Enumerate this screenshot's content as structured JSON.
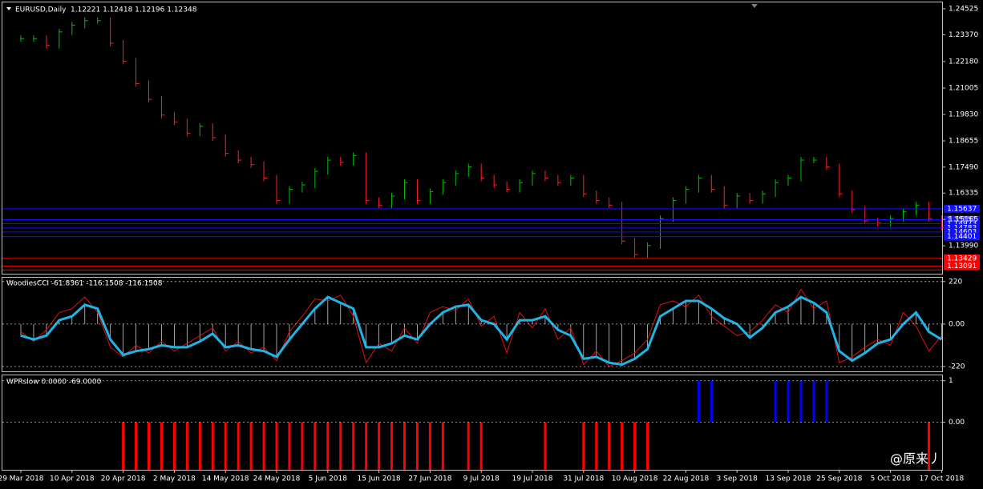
{
  "chart_data": [
    {
      "type": "price",
      "title": "EURUSD,Daily",
      "subtitle": "1.12221 1.12418 1.12196 1.12348",
      "categories": [
        "29 Mar 2018",
        null,
        null,
        null,
        "10 Apr 2018",
        null,
        null,
        null,
        "20 Apr 2018",
        null,
        null,
        null,
        "2 May 2018",
        null,
        null,
        null,
        "14 May 2018",
        null,
        null,
        null,
        "24 May 2018",
        null,
        null,
        null,
        "5 Jun 2018",
        null,
        null,
        null,
        "15 Jun 2018",
        null,
        null,
        null,
        "27 Jun 2018",
        null,
        null,
        null,
        "9 Jul 2018",
        null,
        null,
        null,
        "19 Jul 2018",
        null,
        null,
        null,
        "31 Jul 2018",
        null,
        null,
        null,
        "10 Aug 2018",
        null,
        null,
        null,
        "22 Aug 2018",
        null,
        null,
        null,
        "3 Sep 2018",
        null,
        null,
        null,
        "13 Sep 2018",
        null,
        null,
        null,
        "25 Sep 2018",
        null,
        null,
        null,
        "5 Oct 2018",
        null,
        null,
        null,
        "17 Oct 2018"
      ],
      "values": [
        1.232,
        1.232,
        1.229,
        1.235,
        1.238,
        1.24,
        1.24,
        1.23,
        1.222,
        1.212,
        1.205,
        1.198,
        1.195,
        1.19,
        1.193,
        1.188,
        1.181,
        1.178,
        1.176,
        1.17,
        1.16,
        1.165,
        1.167,
        1.173,
        1.178,
        1.177,
        1.18,
        1.16,
        1.158,
        1.162,
        1.168,
        1.16,
        1.164,
        1.168,
        1.172,
        1.175,
        1.17,
        1.167,
        1.165,
        1.168,
        1.172,
        1.17,
        1.168,
        1.17,
        1.163,
        1.16,
        1.158,
        1.142,
        1.136,
        1.14,
        1.152,
        1.16,
        1.165,
        1.17,
        1.165,
        1.158,
        1.162,
        1.16,
        1.163,
        1.168,
        1.17,
        1.178,
        1.178,
        1.175,
        1.163,
        1.156,
        1.151,
        1.15,
        1.152,
        1.155,
        1.158,
        1.152,
        1.148
      ],
      "color": "#00c000",
      "down_color": "#ff2020",
      "ylim": [
        1.1275,
        1.2481
      ],
      "yticks": [
        1.24525,
        {
          "value": 1.2337,
          "label": "1.23370"
        },
        {
          "value": 1.2218,
          "label": "1.22180"
        },
        1.21005,
        {
          "value": 1.1983,
          "label": "1.19830"
        },
        1.18655,
        {
          "value": 1.1749,
          "label": "1.17490"
        },
        1.16335,
        1.15165,
        {
          "value": 1.1399,
          "label": "1.13990"
        }
      ],
      "levels": [
        {
          "value": 1.15637,
          "label": "1.15637"
        },
        {
          "value": 1.15151,
          "label": "1.15151"
        },
        {
          "value": 1.14973,
          "label": "1.14973"
        },
        {
          "value": 1.14783,
          "label": "1.14783"
        },
        {
          "value": 1.14603,
          "label": "1.14603"
        },
        {
          "value": 1.14401,
          "label": "1.14401"
        },
        {
          "value": 1.13429,
          "label": "1.13429"
        },
        {
          "value": 1.13091,
          "label": "1.13091"
        },
        1.1292
      ],
      "level_color": "#1010ff",
      "level_color2": "#ff0000",
      "level_split": 1.14
    },
    {
      "type": "cci",
      "title": "WoodiesCCI -61.8361 -116.1508 -116.1508",
      "series": [
        {
          "color": "#1fb4e6",
          "values": [
            -60,
            -80,
            -60,
            20,
            40,
            100,
            80,
            -80,
            -160,
            -140,
            -130,
            -110,
            -120,
            -120,
            -90,
            -50,
            -120,
            -110,
            -130,
            -140,
            -170,
            -80,
            0,
            80,
            140,
            110,
            80,
            -120,
            -120,
            -100,
            -60,
            -80,
            0,
            60,
            90,
            100,
            20,
            0,
            -80,
            20,
            20,
            40,
            -30,
            -60,
            -180,
            -170,
            -200,
            -210,
            -180,
            -130,
            40,
            80,
            120,
            120,
            80,
            30,
            0,
            -70,
            -20,
            60,
            90,
            140,
            110,
            60,
            -140,
            -190,
            -150,
            -100,
            -80,
            0,
            60,
            -40,
            -80
          ]
        },
        {
          "color": "#e01010",
          "values": [
            -40,
            -90,
            -30,
            60,
            80,
            140,
            60,
            -120,
            -170,
            -110,
            -150,
            -90,
            -140,
            -100,
            -60,
            -20,
            -140,
            -90,
            -150,
            -120,
            -190,
            -40,
            40,
            130,
            120,
            150,
            40,
            -200,
            -100,
            -140,
            -20,
            -100,
            60,
            90,
            70,
            130,
            -10,
            40,
            -150,
            60,
            -20,
            80,
            -80,
            -20,
            -210,
            -140,
            -220,
            -190,
            -150,
            -80,
            100,
            120,
            90,
            150,
            40,
            -10,
            -60,
            -40,
            20,
            100,
            60,
            180,
            80,
            120,
            -200,
            -170,
            -120,
            -80,
            -110,
            60,
            -10,
            -140,
            -60
          ]
        }
      ],
      "ylim": [
        -245,
        240
      ],
      "yticks": [
        220,
        {
          "value": 0,
          "label": "0.00"
        },
        -220
      ]
    },
    {
      "type": "wpr",
      "title": "WPRslow 0.0000 -69.0000",
      "values": [
        0,
        0,
        0,
        0,
        0,
        0,
        0,
        0,
        -1.15,
        -1.15,
        -1.15,
        -1.15,
        -1.15,
        -1.15,
        -1.15,
        -1.15,
        -1.15,
        -1.15,
        -1.15,
        -1.15,
        -1.15,
        -1.15,
        -1.15,
        -1.15,
        -1.15,
        -1.15,
        -1.15,
        -1.15,
        -1.15,
        -1.15,
        -1.15,
        -1.15,
        -1.15,
        -1.15,
        0,
        -1.15,
        -1.15,
        0,
        0,
        0,
        0,
        -1.15,
        0,
        0,
        -1.15,
        -1.15,
        -1.15,
        -1.15,
        -1.15,
        -1.15,
        0,
        0,
        0,
        1,
        1,
        0,
        0,
        0,
        0,
        1,
        1,
        1,
        1,
        1,
        0,
        0,
        0,
        0,
        0,
        0,
        0,
        -1.15,
        0
      ],
      "color": "#0000ff",
      "down_color": "#ff0000",
      "ylim": [
        -1.15,
        1.13
      ],
      "yticks": [
        1,
        {
          "value": 0,
          "label": "0.00"
        }
      ]
    }
  ],
  "watermark": "@原来丿"
}
